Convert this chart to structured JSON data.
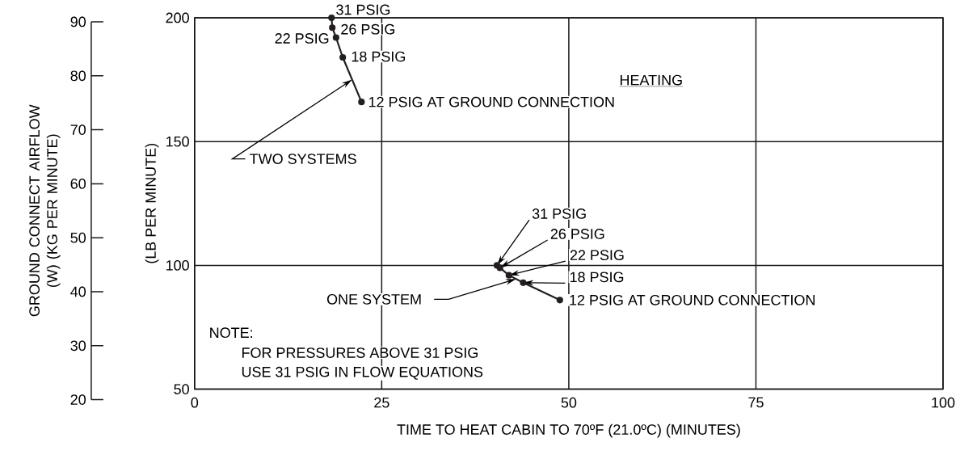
{
  "chart_data": {
    "type": "line",
    "xlabel": "TIME TO HEAT CABIN TO 70ºF (21.0ºC) (MINUTES)",
    "ylabel": "(LB PER MINUTE)",
    "y3label": "GROUND CONNECT AIRFLOW (W) (KG PER MINUTE)",
    "xlim": [
      0,
      100
    ],
    "xticks": [
      0,
      25,
      50,
      75,
      100
    ],
    "ylim": [
      50,
      200
    ],
    "yticks": [
      50,
      100,
      150,
      200
    ],
    "y3lim": [
      20,
      90
    ],
    "y3ticks": [
      20,
      30,
      40,
      50,
      60,
      70,
      80,
      90
    ],
    "grid": true,
    "marker": "circle",
    "line_style": "solid",
    "series": [
      {
        "name": "TWO SYSTEMS",
        "color": "#231f20",
        "x": [
          18.3,
          18.4,
          18.9,
          19.8,
          22.3
        ],
        "values": [
          200,
          196,
          192,
          184,
          166
        ]
      },
      {
        "name": "ONE SYSTEM",
        "color": "#231f20",
        "x": [
          40.4,
          40.8,
          42.0,
          43.9,
          48.8
        ],
        "values": [
          100,
          99,
          96,
          93,
          86
        ]
      }
    ],
    "annotations": [
      {
        "text": "31 PSIG",
        "x": 18.3,
        "y": 200
      },
      {
        "text": "26 PSIG",
        "x": 18.4,
        "y": 196
      },
      {
        "text": "22 PSIG",
        "x": 18.9,
        "y": 192
      },
      {
        "text": "18 PSIG",
        "x": 19.8,
        "y": 184
      },
      {
        "text": "12 PSIG AT GROUND CONNECTION",
        "x": 22.3,
        "y": 166
      },
      {
        "text": "31 PSIG",
        "x": 40.4,
        "y": 100
      },
      {
        "text": "26 PSIG",
        "x": 40.8,
        "y": 99
      },
      {
        "text": "22 PSIG",
        "x": 42.0,
        "y": 96
      },
      {
        "text": "18 PSIG",
        "x": 43.9,
        "y": 93
      },
      {
        "text": "12 PSIG AT GROUND CONNECTION",
        "x": 48.8,
        "y": 86
      },
      "HEATING",
      "NOTE:",
      "FOR PRESSURES ABOVE 31 PSIG",
      "USE 31 PSIG IN FLOW EQUATIONS"
    ]
  }
}
